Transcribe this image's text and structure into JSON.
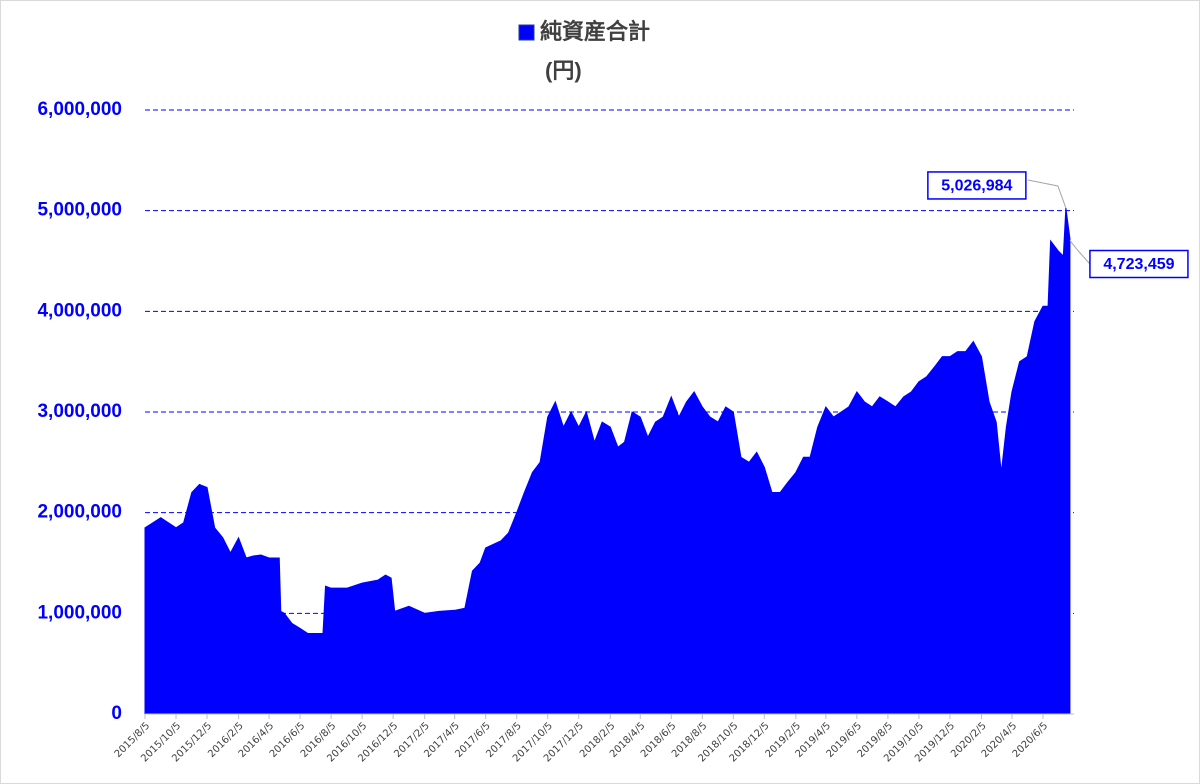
{
  "chart_data": {
    "type": "area",
    "series": [
      {
        "name": "純資産合計",
        "color": "#0000ff",
        "x": [
          "2015/8/5",
          "2015/9/5",
          "2015/10/5",
          "2015/10/20",
          "2015/11/5",
          "2015/11/20",
          "2015/12/5",
          "2015/12/20",
          "2016/1/5",
          "2016/1/20",
          "2016/2/5",
          "2016/2/20",
          "2016/3/5",
          "2016/3/20",
          "2016/4/5",
          "2016/4/25",
          "2016/4/28",
          "2016/5/5",
          "2016/5/20",
          "2016/6/5",
          "2016/6/20",
          "2016/7/5",
          "2016/7/20",
          "2016/7/25",
          "2016/8/5",
          "2016/9/5",
          "2016/10/5",
          "2016/11/5",
          "2016/11/20",
          "2016/12/1",
          "2016/12/8",
          "2017/1/5",
          "2017/2/5",
          "2017/3/5",
          "2017/4/5",
          "2017/4/25",
          "2017/5/10",
          "2017/5/25",
          "2017/6/5",
          "2017/7/5",
          "2017/7/20",
          "2017/8/5",
          "2017/8/20",
          "2017/9/5",
          "2017/9/20",
          "2017/10/5",
          "2017/10/20",
          "2017/11/5",
          "2017/11/20",
          "2017/12/5",
          "2017/12/20",
          "2018/1/5",
          "2018/1/20",
          "2018/2/5",
          "2018/2/20",
          "2018/3/5",
          "2018/3/20",
          "2018/4/5",
          "2018/4/20",
          "2018/5/5",
          "2018/5/20",
          "2018/6/5",
          "2018/6/20",
          "2018/7/5",
          "2018/7/20",
          "2018/8/5",
          "2018/8/20",
          "2018/9/5",
          "2018/9/20",
          "2018/10/5",
          "2018/10/20",
          "2018/11/5",
          "2018/11/20",
          "2018/12/5",
          "2018/12/20",
          "2019/1/5",
          "2019/1/20",
          "2019/2/5",
          "2019/2/20",
          "2019/3/5",
          "2019/3/20",
          "2019/4/5",
          "2019/4/20",
          "2019/5/5",
          "2019/5/20",
          "2019/6/5",
          "2019/6/20",
          "2019/7/5",
          "2019/7/20",
          "2019/8/5",
          "2019/8/20",
          "2019/9/5",
          "2019/9/20",
          "2019/10/5",
          "2019/10/20",
          "2019/11/5",
          "2019/11/20",
          "2019/12/5",
          "2019/12/20",
          "2020/1/5",
          "2020/1/20",
          "2020/2/5",
          "2020/2/20",
          "2020/3/5",
          "2020/3/15",
          "2020/3/25",
          "2020/4/5",
          "2020/4/20",
          "2020/5/5",
          "2020/5/20",
          "2020/6/5",
          "2020/6/15",
          "2020/6/20",
          "2020/7/5",
          "2020/7/15",
          "2020/7/20",
          "2020/7/28"
        ],
        "values": [
          1850000,
          1950000,
          1850000,
          1900000,
          2200000,
          2280000,
          2250000,
          1850000,
          1750000,
          1600000,
          1750000,
          1550000,
          1570000,
          1580000,
          1550000,
          1550000,
          1020000,
          1000000,
          900000,
          850000,
          800000,
          800000,
          800000,
          1270000,
          1250000,
          1250000,
          1300000,
          1330000,
          1380000,
          1350000,
          1020000,
          1070000,
          1000000,
          1020000,
          1030000,
          1050000,
          1420000,
          1500000,
          1650000,
          1720000,
          1800000,
          2000000,
          2200000,
          2400000,
          2500000,
          2950000,
          3100000,
          2850000,
          3000000,
          2850000,
          3000000,
          2700000,
          2900000,
          2850000,
          2650000,
          2700000,
          3000000,
          2950000,
          2750000,
          2900000,
          2950000,
          3150000,
          2950000,
          3100000,
          3200000,
          3050000,
          2950000,
          2900000,
          3050000,
          3000000,
          2550000,
          2500000,
          2600000,
          2450000,
          2200000,
          2200000,
          2300000,
          2400000,
          2550000,
          2550000,
          2850000,
          3050000,
          2950000,
          3000000,
          3050000,
          3200000,
          3100000,
          3050000,
          3150000,
          3100000,
          3050000,
          3150000,
          3200000,
          3300000,
          3350000,
          3450000,
          3550000,
          3550000,
          3600000,
          3600000,
          3700000,
          3550000,
          3100000,
          2900000,
          2400000,
          2850000,
          3200000,
          3500000,
          3550000,
          3900000,
          4050000,
          4050000,
          4700000,
          4600000,
          4550000,
          5026984,
          4723459
        ],
        "value_labels": [
          null,
          null,
          null,
          null,
          null,
          null,
          null,
          null,
          null,
          null,
          null,
          null,
          null,
          null,
          null,
          null,
          null,
          null,
          null,
          null,
          null,
          null,
          null,
          null,
          null,
          null,
          null,
          null,
          null,
          null,
          null,
          null,
          null,
          null,
          null,
          null,
          null,
          null,
          null,
          null,
          null,
          null,
          null,
          null,
          null,
          null,
          null,
          null,
          null,
          null,
          null,
          null,
          null,
          null,
          null,
          null,
          null,
          null,
          null,
          null,
          null,
          null,
          null,
          null,
          null,
          null,
          null,
          null,
          null,
          null,
          null,
          null,
          null,
          null,
          null,
          null,
          null,
          null,
          null,
          null,
          null,
          null,
          null,
          null,
          null,
          null,
          null,
          null,
          null,
          null,
          null,
          null,
          null,
          null,
          null,
          null,
          null,
          null,
          null,
          null,
          null,
          null,
          null,
          null,
          null,
          null,
          null,
          null,
          null,
          null,
          null,
          null,
          null,
          null,
          null,
          "5,026,984",
          "4,723,459"
        ]
      }
    ],
    "y_label": "(円)",
    "xlim": [
      "2015/8/5",
      "2020/8/5"
    ],
    "xticks": [
      "2015/8/5",
      "2015/10/5",
      "2015/12/5",
      "2016/2/5",
      "2016/4/5",
      "2016/6/5",
      "2016/8/5",
      "2016/10/5",
      "2016/12/5",
      "2017/2/5",
      "2017/4/5",
      "2017/6/5",
      "2017/8/5",
      "2017/10/5",
      "2017/12/5",
      "2018/2/5",
      "2018/4/5",
      "2018/6/5",
      "2018/8/5",
      "2018/10/5",
      "2018/12/5",
      "2019/2/5",
      "2019/4/5",
      "2019/6/5",
      "2019/8/5",
      "2019/10/5",
      "2019/12/5",
      "2020/2/5",
      "2020/4/5",
      "2020/6/5"
    ],
    "ylim": [
      0,
      6000000
    ],
    "yticks": [
      0,
      {
        "value": 1000000,
        "label": "1,000,000"
      },
      {
        "value": 2000000,
        "label": "2,000,000"
      },
      {
        "value": 3000000,
        "label": "3,000,000"
      },
      {
        "value": 4000000,
        "label": "4,000,000"
      },
      {
        "value": 5000000,
        "label": "5,000,000"
      },
      {
        "value": 6000000,
        "label": "6,000,000"
      }
    ],
    "grid": true,
    "legend": "top"
  }
}
